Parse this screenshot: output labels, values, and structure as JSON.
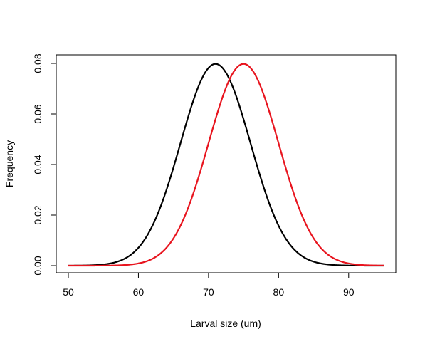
{
  "chart_data": {
    "type": "line",
    "title": "",
    "xlabel": "Larval size (um)",
    "ylabel": "Frequency",
    "xlim": [
      50,
      95
    ],
    "ylim": [
      0,
      0.08
    ],
    "x_ticks": [
      50,
      60,
      70,
      80,
      90
    ],
    "y_ticks": [
      0.0,
      0.02,
      0.04,
      0.06,
      0.08
    ],
    "x_tick_labels": [
      "50",
      "60",
      "70",
      "80",
      "90"
    ],
    "y_tick_labels": [
      "0.00",
      "0.02",
      "0.04",
      "0.06",
      "0.08"
    ],
    "grid": false,
    "legend": "none",
    "series": [
      {
        "color": "#000000",
        "distribution": "normal",
        "mean": 71,
        "sd": 5,
        "x_range": [
          50,
          95
        ],
        "peak_y": 0.0798
      },
      {
        "color": "#e8141e",
        "distribution": "normal",
        "mean": 75,
        "sd": 5,
        "x_range": [
          50,
          95
        ],
        "peak_y": 0.0798
      }
    ]
  }
}
